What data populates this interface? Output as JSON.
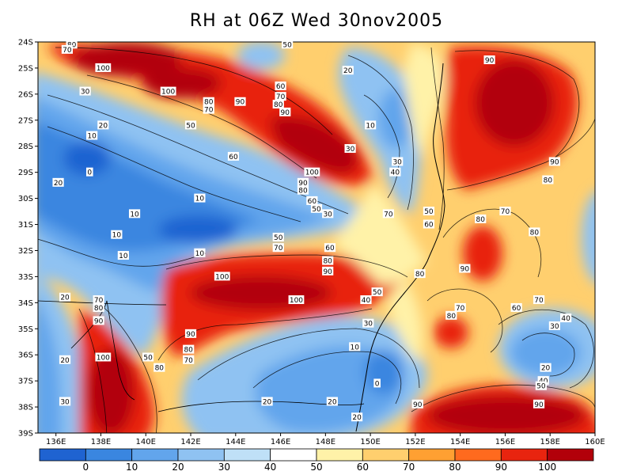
{
  "title": "RH at 06Z Wed 30nov2005",
  "lon_ticks": [
    "136E",
    "138E",
    "140E",
    "142E",
    "144E",
    "146E",
    "148E",
    "150E",
    "152E",
    "154E",
    "156E",
    "158E",
    "160E"
  ],
  "lat_ticks": [
    "24S",
    "25S",
    "26S",
    "27S",
    "28S",
    "29S",
    "30S",
    "31S",
    "32S",
    "33S",
    "34S",
    "35S",
    "36S",
    "37S",
    "38S",
    "39S"
  ],
  "colorbar": {
    "colors": [
      "#1f63d1",
      "#3a86e0",
      "#62a5ec",
      "#8fc2f2",
      "#bfe0f7",
      "#ffffff",
      "#fff2a8",
      "#ffcf6e",
      "#ffa032",
      "#ff6a1e",
      "#e8240f",
      "#b2000a"
    ],
    "labels": [
      "0",
      "10",
      "20",
      "30",
      "40",
      "50",
      "60",
      "70",
      "80",
      "90",
      "100"
    ]
  },
  "contour_labels": [
    {
      "t": "80",
      "lon": 136.7,
      "lat": 24.1
    },
    {
      "t": "70",
      "lon": 136.5,
      "lat": 24.3
    },
    {
      "t": "100",
      "lon": 138.1,
      "lat": 25.0
    },
    {
      "t": "100",
      "lon": 141.0,
      "lat": 25.9
    },
    {
      "t": "30",
      "lon": 137.3,
      "lat": 25.9
    },
    {
      "t": "50",
      "lon": 146.3,
      "lat": 24.1
    },
    {
      "t": "20",
      "lon": 149.0,
      "lat": 25.1
    },
    {
      "t": "90",
      "lon": 155.3,
      "lat": 24.7
    },
    {
      "t": "60",
      "lon": 146.0,
      "lat": 25.7
    },
    {
      "t": "70",
      "lon": 146.0,
      "lat": 26.1
    },
    {
      "t": "80",
      "lon": 145.9,
      "lat": 26.4
    },
    {
      "t": "90",
      "lon": 146.2,
      "lat": 26.7
    },
    {
      "t": "90",
      "lon": 144.2,
      "lat": 26.3
    },
    {
      "t": "80",
      "lon": 142.8,
      "lat": 26.3
    },
    {
      "t": "70",
      "lon": 142.8,
      "lat": 26.6
    },
    {
      "t": "50",
      "lon": 142.0,
      "lat": 27.2
    },
    {
      "t": "20",
      "lon": 138.1,
      "lat": 27.2
    },
    {
      "t": "10",
      "lon": 137.6,
      "lat": 27.6
    },
    {
      "t": "10",
      "lon": 150.0,
      "lat": 27.2
    },
    {
      "t": "30",
      "lon": 149.1,
      "lat": 28.1
    },
    {
      "t": "60",
      "lon": 143.9,
      "lat": 28.4
    },
    {
      "t": "30",
      "lon": 151.2,
      "lat": 28.6
    },
    {
      "t": "40",
      "lon": 151.1,
      "lat": 29.0
    },
    {
      "t": "100",
      "lon": 147.4,
      "lat": 29.0
    },
    {
      "t": "90",
      "lon": 158.2,
      "lat": 28.6
    },
    {
      "t": "0",
      "lon": 137.5,
      "lat": 29.0
    },
    {
      "t": "20",
      "lon": 136.1,
      "lat": 29.4
    },
    {
      "t": "90",
      "lon": 147.0,
      "lat": 29.4
    },
    {
      "t": "80",
      "lon": 147.0,
      "lat": 29.7
    },
    {
      "t": "80",
      "lon": 157.9,
      "lat": 29.3
    },
    {
      "t": "10",
      "lon": 142.4,
      "lat": 30.0
    },
    {
      "t": "60",
      "lon": 147.4,
      "lat": 30.1
    },
    {
      "t": "50",
      "lon": 147.6,
      "lat": 30.4
    },
    {
      "t": "30",
      "lon": 148.1,
      "lat": 30.6
    },
    {
      "t": "10",
      "lon": 139.5,
      "lat": 30.6
    },
    {
      "t": "70",
      "lon": 150.8,
      "lat": 30.6
    },
    {
      "t": "50",
      "lon": 152.6,
      "lat": 30.5
    },
    {
      "t": "80",
      "lon": 154.9,
      "lat": 30.8
    },
    {
      "t": "70",
      "lon": 156.0,
      "lat": 30.5
    },
    {
      "t": "60",
      "lon": 152.6,
      "lat": 31.0
    },
    {
      "t": "80",
      "lon": 157.3,
      "lat": 31.3
    },
    {
      "t": "10",
      "lon": 138.7,
      "lat": 31.4
    },
    {
      "t": "50",
      "lon": 145.9,
      "lat": 31.5
    },
    {
      "t": "70",
      "lon": 145.9,
      "lat": 31.9
    },
    {
      "t": "60",
      "lon": 148.2,
      "lat": 31.9
    },
    {
      "t": "10",
      "lon": 139.0,
      "lat": 32.2
    },
    {
      "t": "10",
      "lon": 142.4,
      "lat": 32.1
    },
    {
      "t": "80",
      "lon": 148.1,
      "lat": 32.4
    },
    {
      "t": "90",
      "lon": 148.1,
      "lat": 32.8
    },
    {
      "t": "90",
      "lon": 154.2,
      "lat": 32.7
    },
    {
      "t": "80",
      "lon": 152.2,
      "lat": 32.9
    },
    {
      "t": "100",
      "lon": 143.4,
      "lat": 33.0
    },
    {
      "t": "50",
      "lon": 150.3,
      "lat": 33.6
    },
    {
      "t": "20",
      "lon": 136.4,
      "lat": 33.8
    },
    {
      "t": "70",
      "lon": 137.9,
      "lat": 33.9
    },
    {
      "t": "40",
      "lon": 149.8,
      "lat": 33.9
    },
    {
      "t": "100",
      "lon": 146.7,
      "lat": 33.9
    },
    {
      "t": "80",
      "lon": 137.9,
      "lat": 34.2
    },
    {
      "t": "70",
      "lon": 154.0,
      "lat": 34.2
    },
    {
      "t": "60",
      "lon": 156.5,
      "lat": 34.2
    },
    {
      "t": "70",
      "lon": 157.5,
      "lat": 33.9
    },
    {
      "t": "80",
      "lon": 153.6,
      "lat": 34.5
    },
    {
      "t": "40",
      "lon": 158.7,
      "lat": 34.6
    },
    {
      "t": "90",
      "lon": 137.9,
      "lat": 34.7
    },
    {
      "t": "30",
      "lon": 149.9,
      "lat": 34.8
    },
    {
      "t": "30",
      "lon": 158.2,
      "lat": 34.9
    },
    {
      "t": "90",
      "lon": 142.0,
      "lat": 35.2
    },
    {
      "t": "10",
      "lon": 149.3,
      "lat": 35.7
    },
    {
      "t": "80",
      "lon": 141.9,
      "lat": 35.8
    },
    {
      "t": "50",
      "lon": 140.1,
      "lat": 36.1
    },
    {
      "t": "20",
      "lon": 136.4,
      "lat": 36.2
    },
    {
      "t": "100",
      "lon": 138.1,
      "lat": 36.1
    },
    {
      "t": "70",
      "lon": 141.9,
      "lat": 36.2
    },
    {
      "t": "80",
      "lon": 140.6,
      "lat": 36.5
    },
    {
      "t": "20",
      "lon": 157.8,
      "lat": 36.5
    },
    {
      "t": "0",
      "lon": 150.3,
      "lat": 37.1
    },
    {
      "t": "40",
      "lon": 157.7,
      "lat": 37.0
    },
    {
      "t": "50",
      "lon": 157.6,
      "lat": 37.2
    },
    {
      "t": "30",
      "lon": 136.4,
      "lat": 37.8
    },
    {
      "t": "20",
      "lon": 145.4,
      "lat": 37.8
    },
    {
      "t": "20",
      "lon": 148.3,
      "lat": 37.8
    },
    {
      "t": "90",
      "lon": 152.1,
      "lat": 37.9
    },
    {
      "t": "90",
      "lon": 157.5,
      "lat": 37.9
    },
    {
      "t": "20",
      "lon": 149.4,
      "lat": 38.4
    }
  ]
}
